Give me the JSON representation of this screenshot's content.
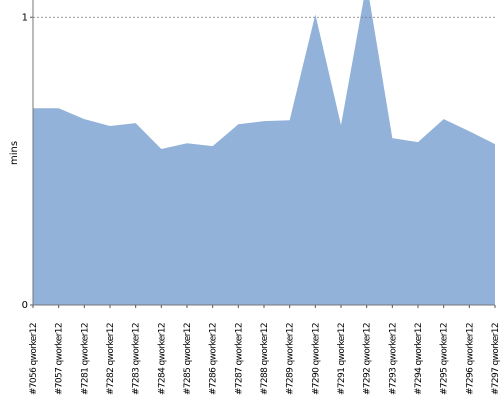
{
  "chart_data": {
    "type": "area",
    "y_label": "mins",
    "categories": [
      "#7056 qworker12",
      "#7057 qworker12",
      "#7281 qworker12",
      "#7282 qworker12",
      "#7283 qworker12",
      "#7284 qworker12",
      "#7285 qworker12",
      "#7286 qworker12",
      "#7287 qworker12",
      "#7288 qworker12",
      "#7289 qworker12",
      "#7290 qworker12",
      "#7291 qworker12",
      "#7292 qworker12",
      "#7293 qworker12",
      "#7294 qworker12",
      "#7295 qworker12",
      "#7296 qworker12",
      "#7297 qworker12"
    ],
    "values": [
      0.684,
      0.684,
      0.646,
      0.622,
      0.632,
      0.542,
      0.562,
      0.552,
      0.628,
      0.639,
      0.642,
      1.01,
      0.625,
      1.12,
      0.58,
      0.566,
      0.646,
      0.604,
      0.559
    ],
    "color": "#92b2da",
    "ylim": [
      0,
      1.06
    ],
    "yticks": [
      0,
      1
    ],
    "grid": true
  }
}
